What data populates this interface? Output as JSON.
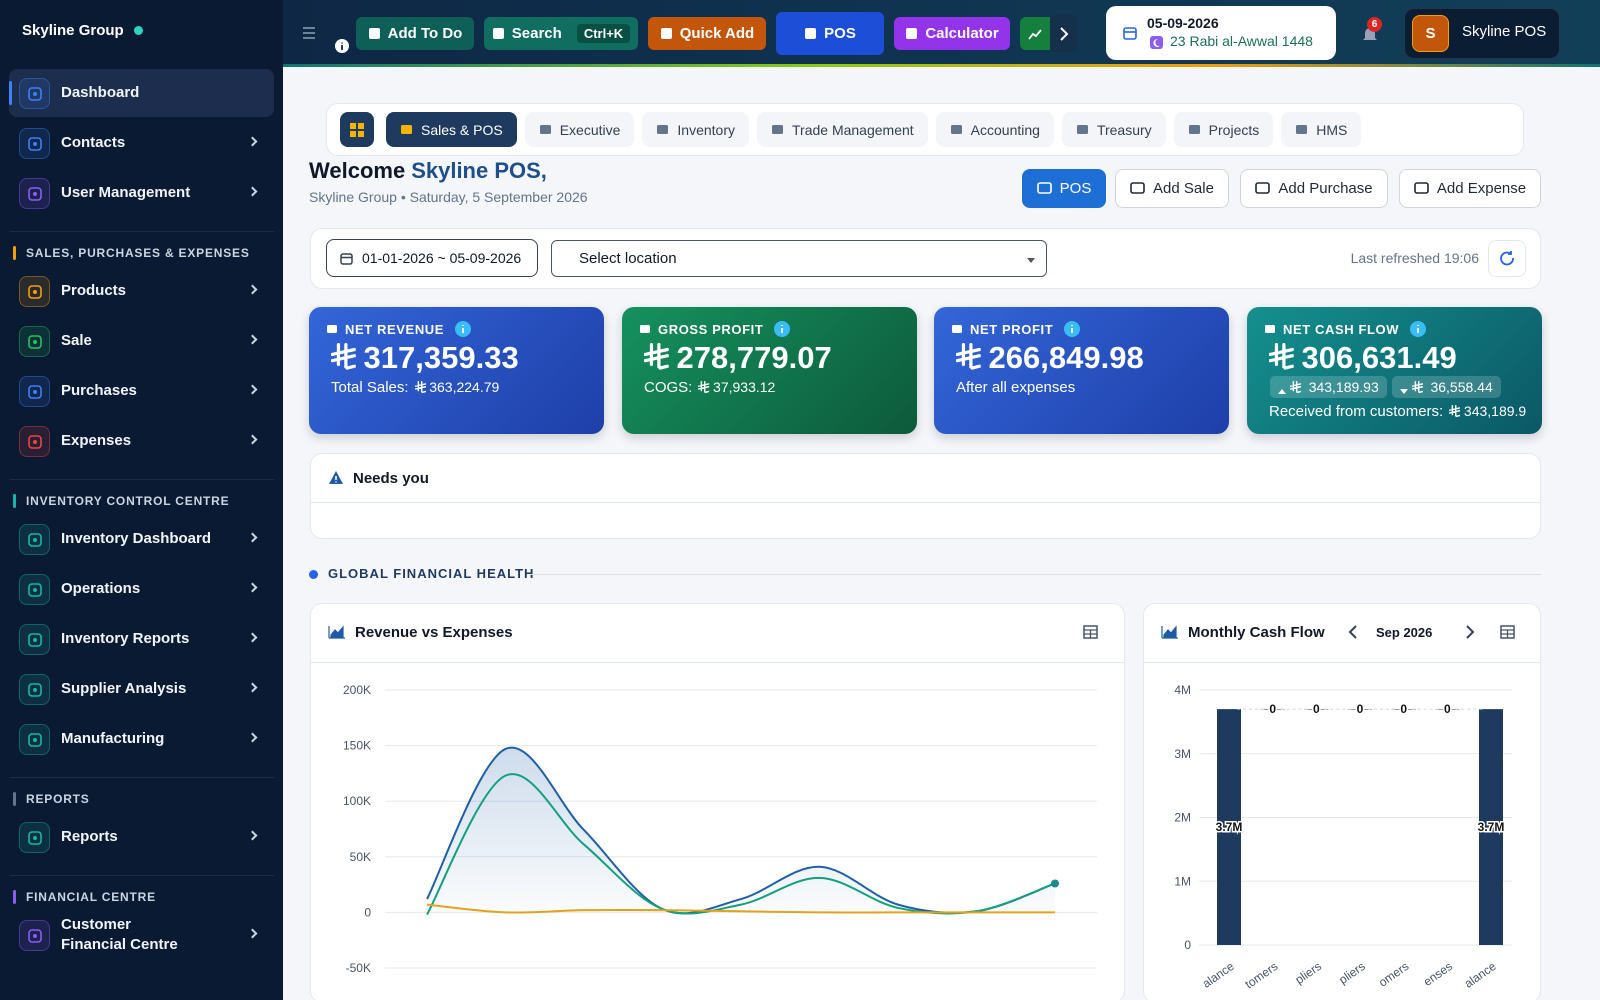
{
  "sidebar": {
    "brand": "Skyline Group",
    "sections": [
      {
        "items": [
          "Dashboard",
          "Contacts",
          "User Management"
        ]
      },
      {
        "title": "SALES, PURCHASES & EXPENSES",
        "items": [
          "Products",
          "Sale",
          "Purchases",
          "Expenses"
        ]
      },
      {
        "title": "INVENTORY CONTROL CENTRE",
        "items": [
          "Inventory Dashboard",
          "Operations",
          "Inventory Reports",
          "Supplier Analysis",
          "Manufacturing"
        ]
      },
      {
        "title": "REPORTS",
        "items": [
          "Reports"
        ]
      },
      {
        "title": "FINANCIAL CENTRE",
        "items": [
          "Customer Financial Centre"
        ]
      }
    ]
  },
  "topbar": {
    "buttons": [
      "Add To Do",
      "Search",
      "Quick Add",
      "POS",
      "Calculator"
    ],
    "shortcut": "Ctrl+K",
    "date": "05-09-2026",
    "hijri_date": "23 Rabi al-Awwal 1448",
    "notifications": 6,
    "user_initial": "S",
    "user_name": "Skyline POS"
  },
  "tabs": [
    "Sales & POS",
    "Executive",
    "Inventory",
    "Trade Management",
    "Accounting",
    "Treasury",
    "Projects",
    "HMS"
  ],
  "welcome": {
    "greeting": "Welcome",
    "name": "Skyline POS,",
    "subtitle": "Skyline Group • Saturday, 5 September 2026"
  },
  "actions": [
    "POS",
    "Add Sale",
    "Add Purchase",
    "Add Expense"
  ],
  "filters": {
    "date_range": "01-01-2026 ~ 05-09-2026",
    "location": "Select location",
    "last_refreshed": "Last refreshed 19:06"
  },
  "kpis": [
    {
      "label": "NET REVENUE",
      "value": "317,359.33",
      "note": "Total Sales:",
      "note_value": "363,224.79"
    },
    {
      "label": "GROSS PROFIT",
      "value": "278,779.07",
      "note": "COGS:",
      "note_value": "37,933.12"
    },
    {
      "label": "NET PROFIT",
      "value": "266,849.98",
      "note": "After all expenses"
    },
    {
      "label": "NET CASH FLOW",
      "value": "306,631.49",
      "inflow": "343,189.93",
      "outflow": "36,558.44",
      "note": "Received from customers:",
      "note_value": "343,189.9"
    }
  ],
  "alerts": {
    "title": "Needs you"
  },
  "section_title": "GLOBAL FINANCIAL HEALTH",
  "charts": [
    {
      "type": "line",
      "title": "Revenue vs Expenses",
      "categories": [
        null,
        null,
        null,
        null,
        null,
        null,
        null,
        null,
        null
      ],
      "series": [
        {
          "color": "#1f5fa8",
          "values": [
            12000,
            147000,
            74000,
            3000,
            12000,
            41000,
            7000,
            1000,
            26000
          ]
        },
        {
          "color": "#12a07e",
          "values": [
            -2000,
            123000,
            61000,
            3000,
            7000,
            31000,
            4000,
            1000,
            26000
          ]
        },
        {
          "color": "#e3a21a",
          "values": [
            7000,
            0,
            2000,
            2000,
            1000,
            0,
            0,
            0,
            0
          ]
        }
      ],
      "ylim": [
        -50000,
        200000
      ],
      "yticks": [
        {
          "value": -50000,
          "label": "-50K"
        },
        0,
        {
          "value": 50000,
          "label": "50K"
        },
        {
          "value": 100000,
          "label": "100K"
        },
        {
          "value": 150000,
          "label": "150K"
        },
        {
          "value": 200000,
          "label": "200K"
        }
      ],
      "grid": true
    },
    {
      "type": "bar",
      "title": "Monthly Cash Flow",
      "period": "Sep 2026",
      "categories": [
        "alance",
        "tomers",
        "pliers",
        "pliers",
        "omers",
        "enses",
        "alance"
      ],
      "values": [
        3700000,
        0,
        0,
        0,
        0,
        0,
        3700000
      ],
      "value_labels": [
        "3.7M",
        "0",
        "0",
        "0",
        "0",
        "0",
        "3.7M"
      ],
      "color": "#1e3a5f",
      "ylim": [
        0,
        4000000
      ],
      "yticks": [
        0,
        {
          "value": 1000000,
          "label": "1M"
        },
        {
          "value": 2000000,
          "label": "2M"
        },
        {
          "value": 3000000,
          "label": "3M"
        },
        {
          "value": 4000000,
          "label": "4M"
        }
      ],
      "grid": true
    }
  ]
}
